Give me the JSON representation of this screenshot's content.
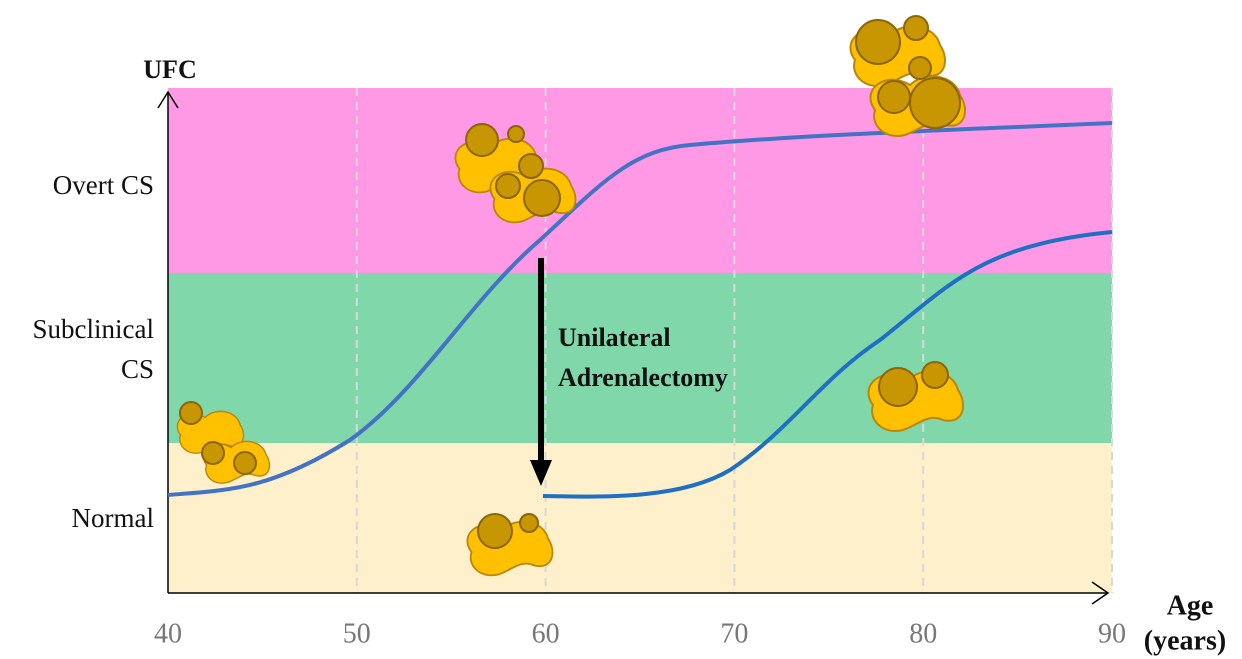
{
  "axis": {
    "y_label": "UFC",
    "x_label": [
      "Age",
      "(years)"
    ],
    "x_ticks": [
      40,
      50,
      60,
      70,
      80,
      90
    ]
  },
  "bands": [
    {
      "label": [
        "Overt CS"
      ]
    },
    {
      "label": [
        "Subclinical",
        "CS"
      ]
    },
    {
      "label": [
        "Normal"
      ]
    }
  ],
  "annotation": [
    "Unilateral",
    "Adrenalectomy"
  ]
}
